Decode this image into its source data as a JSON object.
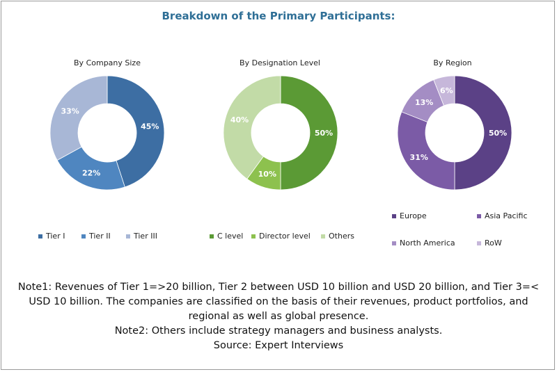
{
  "title": "Breakdown of the Primary Participants:",
  "chart_data": [
    {
      "type": "pie",
      "title": "By Company Size",
      "categories": [
        "Tier I",
        "Tier II",
        "Tier III"
      ],
      "values": [
        45,
        22,
        33
      ],
      "labels": [
        "45%",
        "22%",
        "33%"
      ],
      "colors": [
        "#3d6ea3",
        "#4f86c0",
        "#a8b7d6"
      ]
    },
    {
      "type": "pie",
      "title": "By Designation Level",
      "categories": [
        "C level",
        "Director level",
        "Others"
      ],
      "values": [
        50,
        10,
        40
      ],
      "labels": [
        "50%",
        "10%",
        "40%"
      ],
      "colors": [
        "#5b9a35",
        "#8dc14e",
        "#c2dba7"
      ]
    },
    {
      "type": "pie",
      "title": "By Region",
      "categories": [
        "Europe",
        "Asia Pacific",
        "North America",
        "RoW"
      ],
      "values": [
        50,
        31,
        13,
        6
      ],
      "labels": [
        "50%",
        "31%",
        "13%",
        "6%"
      ],
      "colors": [
        "#5b4186",
        "#7b5ba6",
        "#a48dc4",
        "#c6b7da"
      ]
    }
  ],
  "notes": [
    "Note1: Revenues of Tier 1=>20 billion, Tier 2 between USD 10 billion and USD 20 billion, and Tier 3=<",
    "USD 10 billion. The companies are classified on the basis of their revenues, product portfolios, and",
    "regional as well as global presence.",
    "Note2: Others include strategy managers and business analysts.",
    "Source: Expert Interviews"
  ]
}
